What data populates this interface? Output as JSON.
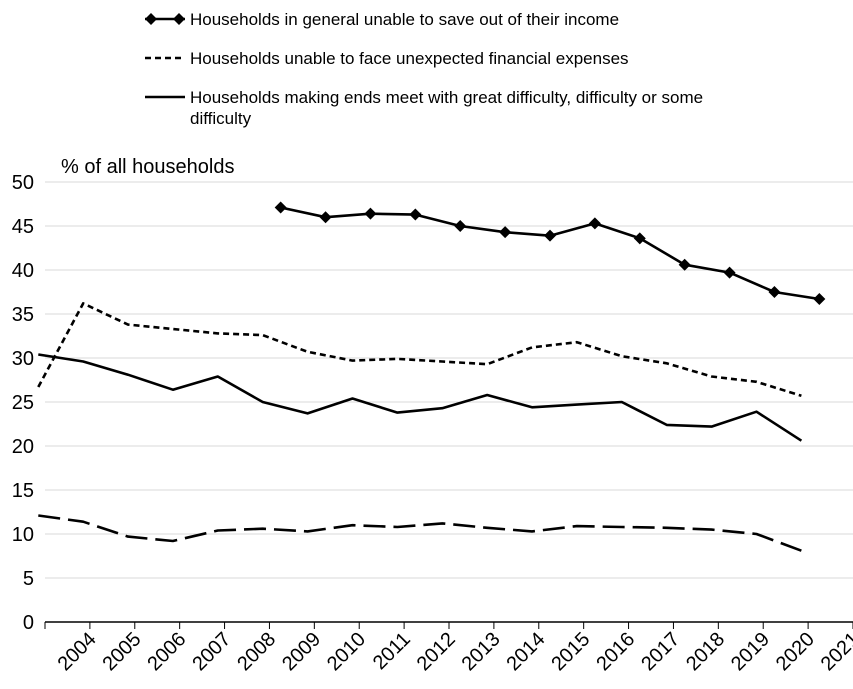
{
  "chart_data": {
    "type": "line",
    "title": "",
    "xlabel": "",
    "ylabel": "% of all households",
    "ylim": [
      0,
      50
    ],
    "yticks": [
      0,
      5,
      10,
      15,
      20,
      25,
      30,
      35,
      40,
      45,
      50
    ],
    "categories": [
      "2004",
      "2005",
      "2006",
      "2007",
      "2008",
      "2009",
      "2010",
      "2011",
      "2012",
      "2013",
      "2014",
      "2015",
      "2016",
      "2017",
      "2018",
      "2019",
      "2020",
      "2021"
    ],
    "grid": "horizontal",
    "legend_position": "top",
    "legend_labels": [
      "Households in general unable to save out of their income",
      "Households unable to face unexpected financial expenses",
      "Households making ends meet with great difficulty, difficulty or some",
      "difficulty"
    ],
    "series": [
      {
        "name": "Households in general unable to save out of their income",
        "style": "solid-diamond",
        "color": "#000000",
        "points": [
          {
            "x": 2009.25,
            "y": 47.1
          },
          {
            "x": 2010.25,
            "y": 46.0
          },
          {
            "x": 2011.25,
            "y": 46.4
          },
          {
            "x": 2012.25,
            "y": 46.3
          },
          {
            "x": 2013.25,
            "y": 45.0
          },
          {
            "x": 2014.25,
            "y": 44.3
          },
          {
            "x": 2015.25,
            "y": 43.9
          },
          {
            "x": 2016.25,
            "y": 45.3
          },
          {
            "x": 2017.25,
            "y": 43.6
          },
          {
            "x": 2018.25,
            "y": 40.6
          },
          {
            "x": 2019.25,
            "y": 39.7
          },
          {
            "x": 2020.25,
            "y": 37.5
          },
          {
            "x": 2021.25,
            "y": 36.7
          }
        ]
      },
      {
        "name": "Households unable to face unexpected financial expenses",
        "style": "short-dash",
        "color": "#000000",
        "points": [
          {
            "x": 2003.85,
            "y": 26.7
          },
          {
            "x": 2004.85,
            "y": 36.2
          },
          {
            "x": 2005.85,
            "y": 33.8
          },
          {
            "x": 2006.85,
            "y": 33.3
          },
          {
            "x": 2007.85,
            "y": 32.8
          },
          {
            "x": 2008.85,
            "y": 32.6
          },
          {
            "x": 2009.85,
            "y": 30.7
          },
          {
            "x": 2010.85,
            "y": 29.7
          },
          {
            "x": 2011.85,
            "y": 29.9
          },
          {
            "x": 2012.85,
            "y": 29.6
          },
          {
            "x": 2013.85,
            "y": 29.3
          },
          {
            "x": 2014.85,
            "y": 31.2
          },
          {
            "x": 2015.85,
            "y": 31.8
          },
          {
            "x": 2016.85,
            "y": 30.2
          },
          {
            "x": 2017.85,
            "y": 29.4
          },
          {
            "x": 2018.85,
            "y": 27.9
          },
          {
            "x": 2019.85,
            "y": 27.3
          },
          {
            "x": 2020.85,
            "y": 25.7
          }
        ]
      },
      {
        "name": "Households making ends meet with great difficulty, difficulty or some difficulty",
        "style": "solid",
        "color": "#000000",
        "points": [
          {
            "x": 2003.85,
            "y": 30.4
          },
          {
            "x": 2004.85,
            "y": 29.6
          },
          {
            "x": 2005.85,
            "y": 28.1
          },
          {
            "x": 2006.85,
            "y": 26.4
          },
          {
            "x": 2007.85,
            "y": 27.9
          },
          {
            "x": 2008.85,
            "y": 25.0
          },
          {
            "x": 2009.85,
            "y": 23.7
          },
          {
            "x": 2010.85,
            "y": 25.4
          },
          {
            "x": 2011.85,
            "y": 23.8
          },
          {
            "x": 2012.85,
            "y": 24.3
          },
          {
            "x": 2013.85,
            "y": 25.8
          },
          {
            "x": 2014.85,
            "y": 24.4
          },
          {
            "x": 2015.85,
            "y": 24.7
          },
          {
            "x": 2016.85,
            "y": 25.0
          },
          {
            "x": 2017.85,
            "y": 22.4
          },
          {
            "x": 2018.85,
            "y": 22.2
          },
          {
            "x": 2019.85,
            "y": 23.9
          },
          {
            "x": 2020.85,
            "y": 20.6
          }
        ]
      },
      {
        "style": "long-dash",
        "color": "#000000",
        "points": [
          {
            "x": 2003.85,
            "y": 12.1
          },
          {
            "x": 2004.85,
            "y": 11.4
          },
          {
            "x": 2005.85,
            "y": 9.7
          },
          {
            "x": 2006.85,
            "y": 9.2
          },
          {
            "x": 2007.85,
            "y": 10.4
          },
          {
            "x": 2008.85,
            "y": 10.6
          },
          {
            "x": 2009.85,
            "y": 10.3
          },
          {
            "x": 2010.85,
            "y": 11.0
          },
          {
            "x": 2011.85,
            "y": 10.8
          },
          {
            "x": 2012.85,
            "y": 11.2
          },
          {
            "x": 2013.85,
            "y": 10.7
          },
          {
            "x": 2014.85,
            "y": 10.3
          },
          {
            "x": 2015.85,
            "y": 10.9
          },
          {
            "x": 2016.85,
            "y": 10.8
          },
          {
            "x": 2017.85,
            "y": 10.7
          },
          {
            "x": 2018.85,
            "y": 10.5
          },
          {
            "x": 2019.85,
            "y": 10.0
          },
          {
            "x": 2020.85,
            "y": 8.1
          }
        ]
      }
    ]
  }
}
